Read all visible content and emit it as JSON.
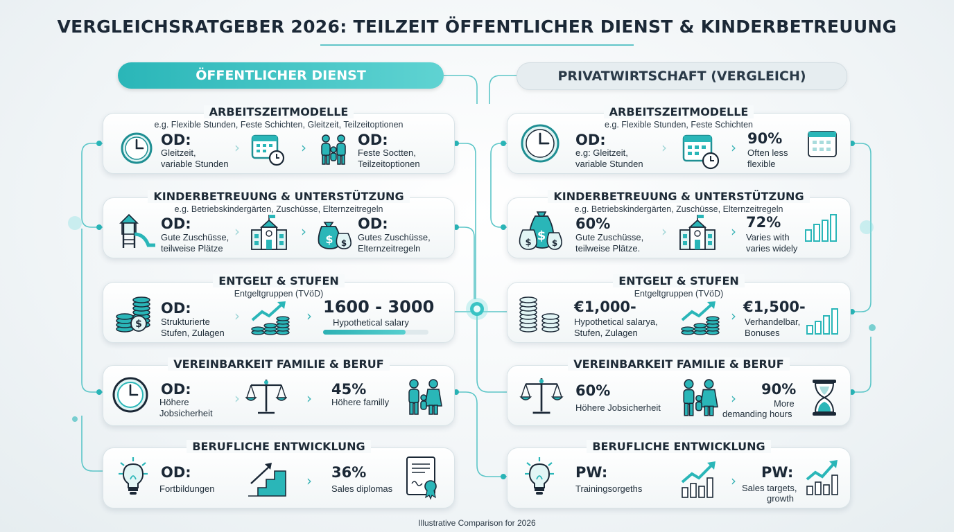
{
  "title": "VERGLEICHSRATGEBER 2026: TEILZEIT ÖFFENTLICHER DIENST & KINDERBETREUUNG",
  "colors": {
    "accent": "#2ab6b8",
    "dark": "#1b2836",
    "icon": "#1f8f93"
  },
  "left_header": "ÖFFENTLICHER DIENST",
  "right_header": "PRIVATWIRTSCHAFT (VERGLEICH)",
  "left": [
    {
      "title": "ARBEITSZEITMODELLE",
      "subtitle": "e.g. Flexible Stunden, Feste Schichten, Gleitzeit, Teilzeitoptionen",
      "a_big": "OD:",
      "a_small": [
        "Gleitzeit,",
        "variable Stunden"
      ],
      "b_big": "OD:",
      "b_small": [
        "Feste Soctten,",
        "Teilzeitoptionen"
      ]
    },
    {
      "title": "KINDERBETREUUNG & UNTERSTÜTZUNG",
      "subtitle": "e.g. Betriebskindergärten, Zuschüsse, Elternzeitregeln",
      "a_big": "OD:",
      "a_small": [
        "Gute Zuschüsse,",
        "teilweise Plätze"
      ],
      "b_big": "OD:",
      "b_small": [
        "Gutes Zuschüsse,",
        "Elternzeitregeln"
      ]
    },
    {
      "title": "ENTGELT & STUFEN",
      "subtitle": "Entgeltgruppen (TVöD)",
      "a_big": "OD:",
      "a_small": [
        "Strukturierte",
        "Stufen, Zulagen"
      ],
      "b_big": "1600 - 3000",
      "b_small": [
        "Hypothetical salary"
      ],
      "b_bar": 0.78
    },
    {
      "title": "VEREINBARKEIT FAMILIE & BERUF",
      "subtitle": "",
      "a_big": "OD:",
      "a_small": [
        "Höhere",
        "Jobsicherheit"
      ],
      "b_big": "45%",
      "b_small": [
        "Höhere familly"
      ]
    },
    {
      "title": "BERUFLICHE ENTWICKLUNG",
      "subtitle": "",
      "a_big": "OD:",
      "a_small": [
        "Fortbildungen"
      ],
      "b_big": "36%",
      "b_small": [
        "Sales diplomas"
      ]
    }
  ],
  "right": [
    {
      "title": "ARBEITSZEITMODELLE",
      "subtitle": "e.g. Flexible Stunden, Feste Schichten",
      "a_big": "OD:",
      "a_small": [
        "e.g: Gleitzeit,",
        "variable Stunden"
      ],
      "b_big": "90%",
      "b_small": [
        "Often less",
        "flexible"
      ]
    },
    {
      "title": "KINDERBETREUUNG & UNTERSTÜTZUNG",
      "subtitle": "e.g. Betriebskindergärten, Zuschüsse, Elternzeitregeln",
      "a_big": "60%",
      "a_small": [
        "Gute Zuschüsse,",
        "teilweise Plätze."
      ],
      "b_big": "72%",
      "b_small": [
        "Varies with",
        "varies widely"
      ]
    },
    {
      "title": "ENTGELT & STUFEN",
      "subtitle": "Entgeltgruppen (TVöD)",
      "a_big": "€1,000-",
      "a_small": [
        "Hypothetical salarya,",
        "Stufen, Zulagen"
      ],
      "b_big": "€1,500-",
      "b_small": [
        "Verhandelbar,",
        "Bonuses"
      ]
    },
    {
      "title": "VEREINBARKEIT FAMILIE & BERUF",
      "subtitle": "",
      "a_big": "60%",
      "a_small": [
        "Höhere Jobsicherheit"
      ],
      "b_big": "90%",
      "b_small": [
        "More",
        "demanding hours"
      ]
    },
    {
      "title": "BERUFLICHE ENTWICKLUNG",
      "subtitle": "",
      "a_big": "PW:",
      "a_small": [
        "Trainingsorgeths"
      ],
      "b_big": "PW:",
      "b_small": [
        "Sales targets,",
        "growth"
      ]
    }
  ],
  "footer": "Illustrative Comparison for 2026"
}
